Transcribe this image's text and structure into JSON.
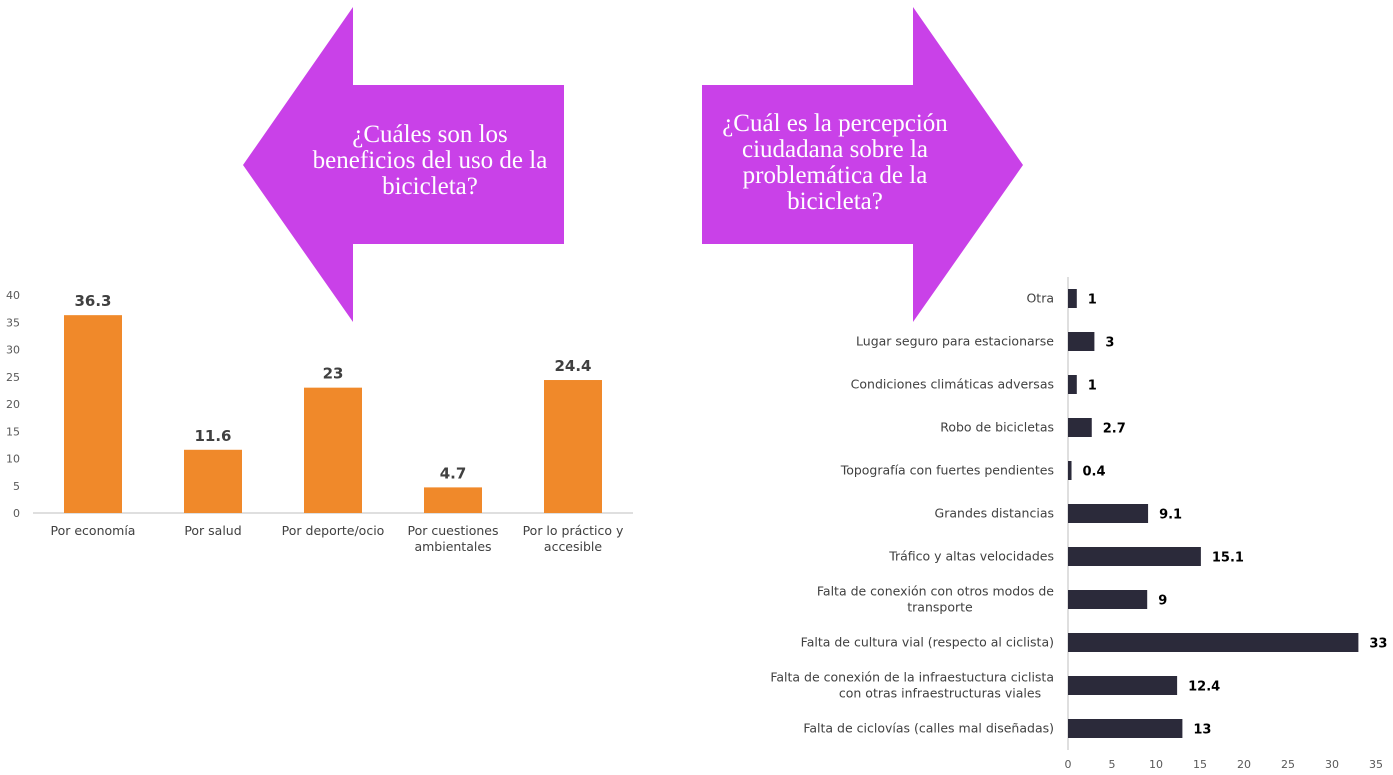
{
  "arrows": {
    "left_text": "¿Cuáles son los beneficios del uso de la bicicleta?",
    "right_text": "¿Cuál es la percepción ciudadana sobre la problemática de la bicicleta?",
    "color": "#C941E8"
  },
  "chart_data": [
    {
      "type": "bar",
      "orientation": "vertical",
      "categories": [
        "Por economía",
        "Por salud",
        "Por deporte/ocio",
        "Por cuestiones ambientales",
        "Por lo práctico y accesible"
      ],
      "values": [
        36.3,
        11.6,
        23,
        4.7,
        24.4
      ],
      "data_labels": [
        "36.3",
        "11.6",
        "23",
        "4.7",
        "24.4"
      ],
      "ylim": [
        0,
        40
      ],
      "yticks": [
        0,
        5,
        10,
        15,
        20,
        25,
        30,
        35,
        40
      ],
      "color": "#F0892A",
      "grid": false
    },
    {
      "type": "bar",
      "orientation": "horizontal",
      "categories": [
        "Otra",
        "Lugar seguro para estacionarse",
        "Condiciones climáticas adversas",
        "Robo de bicicletas",
        "Topografía con fuertes pendientes",
        "Grandes distancias",
        "Tráfico y altas velocidades",
        "Falta de conexión con otros modos de transporte",
        "Falta de cultura vial (respecto al ciclista)",
        "Falta de conexión de la infraestuctura ciclista con otras infraestructuras viales",
        "Falta de ciclovías (calles mal diseñadas)"
      ],
      "values": [
        1,
        3,
        1,
        2.7,
        0.4,
        9.1,
        15.1,
        9,
        33,
        12.4,
        13
      ],
      "data_labels": [
        "1",
        "3",
        "1",
        "2.7",
        "0.4",
        "9.1",
        "15.1",
        "9",
        "33",
        "12.4",
        "13"
      ],
      "xlim": [
        0,
        35
      ],
      "xticks": [
        0,
        5,
        10,
        15,
        20,
        25,
        30,
        35
      ],
      "color": "#2B2A3A",
      "grid": false
    }
  ]
}
